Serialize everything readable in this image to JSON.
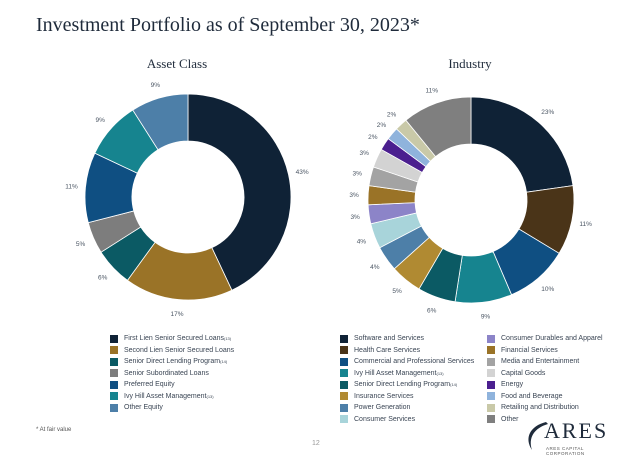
{
  "page": {
    "title": "Investment Portfolio as of September 30, 2023*",
    "footnote": "* At fair value",
    "page_number": "12"
  },
  "logo": {
    "word": "ARES",
    "subtitle": "ARES CAPITAL CORPORATION"
  },
  "chart_data": [
    {
      "type": "pie",
      "title": "Asset Class",
      "categories": [
        "First Lien Senior Secured Loans",
        "Second Lien Senior Secured Loans",
        "Senior Direct Lending Program",
        "Senior Subordinated Loans",
        "Preferred Equity",
        "Ivy Hill Asset Management",
        "Other Equity"
      ],
      "legend_superscripts": [
        "(13)",
        "",
        "(14)",
        "",
        "",
        "(13)",
        ""
      ],
      "values": [
        43,
        17,
        6,
        5,
        11,
        9,
        9
      ],
      "labels": [
        "43%",
        "17%",
        "6%",
        "5%",
        "11%",
        "9%",
        "9%"
      ],
      "colors": [
        "#0f2236",
        "#9a7327",
        "#0b5a64",
        "#7d7d7d",
        "#0f4f82",
        "#16848f",
        "#4d7fa8"
      ],
      "legend_placement": "bottom"
    },
    {
      "type": "pie",
      "title": "Industry",
      "categories": [
        "Software and Services",
        "Health Care Services",
        "Commercial and Professional Services",
        "Ivy Hill Asset Management",
        "Senior Direct Lending Program",
        "Insurance Services",
        "Power Generation",
        "Consumer Services",
        "Consumer Durables and Apparel",
        "Financial Services",
        "Media and Entertainment",
        "Capital Goods",
        "Energy",
        "Food and Beverage",
        "Retailing and Distribution",
        "Other"
      ],
      "legend_superscripts": [
        "",
        "",
        "",
        "(13)",
        "(14)",
        "",
        "",
        "",
        "",
        "",
        "",
        "",
        "",
        "",
        "",
        ""
      ],
      "values": [
        23,
        11,
        10,
        9,
        6,
        5,
        4,
        4,
        3,
        3,
        3,
        3,
        2,
        2,
        2,
        11
      ],
      "labels": [
        "23%",
        "11%",
        "10%",
        "9%",
        "6%",
        "5%",
        "4%",
        "4%",
        "3%",
        "3%",
        "3%",
        "3%",
        "2%",
        "2%",
        "2%",
        "11%"
      ],
      "colors": [
        "#0f2236",
        "#4a3418",
        "#0f4f82",
        "#16848f",
        "#0b5a64",
        "#b08a32",
        "#4d7fa8",
        "#a8d4da",
        "#8c84c8",
        "#9a7327",
        "#a3a3a3",
        "#d3d3d3",
        "#4b1f8f",
        "#8fb3dc",
        "#c9c9a8",
        "#7f7f7f"
      ],
      "legend_placement": "bottom"
    }
  ]
}
